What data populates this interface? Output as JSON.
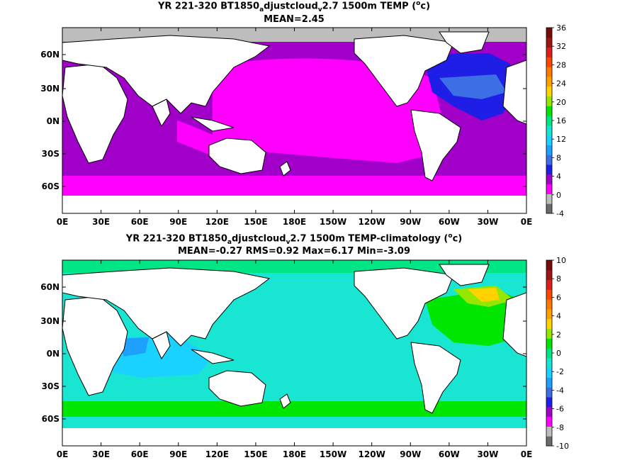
{
  "panels": [
    {
      "title_pre": "YR 221-320 BT1850",
      "title_sub1": "a",
      "title_mid": "djustcloud",
      "title_sub2": "v",
      "title_post": "2.7 1500m TEMP (",
      "title_sup": "o",
      "title_end": "c)",
      "stats": "MEAN=2.45",
      "colorbar_ticks": [
        "-4",
        "0",
        "4",
        "8",
        "12",
        "16",
        "20",
        "24",
        "28",
        "32",
        "36"
      ],
      "colorbar_colors": [
        "#6b6b6b",
        "#bdbdbd",
        "#ff00ff",
        "#a000c8",
        "#1e1ee6",
        "#3c6ee6",
        "#1ea0ff",
        "#19d2ff",
        "#19e6d2",
        "#00e687",
        "#00e600",
        "#96e600",
        "#ffd200",
        "#ffa000",
        "#ff7800",
        "#ff4600",
        "#dc1e1e",
        "#a01414",
        "#780a0a"
      ],
      "fields": {
        "background": "#a000c8",
        "regions": [
          "#ff00ff",
          "#a000c8",
          "#1e1ee6",
          "#3c6ee6",
          "#bdbdbd",
          "#19d2ff"
        ]
      }
    },
    {
      "title_pre": "YR 221-320 BT1850",
      "title_sub1": "a",
      "title_mid": "djustcloud",
      "title_sub2": "v",
      "title_post": "2.7 1500m TEMP-climatology (",
      "title_sup": "o",
      "title_end": "c)",
      "stats": "MEAN=-0.27   RMS=0.92   Max=6.17   Min=-3.09",
      "colorbar_ticks": [
        "-10",
        "-8",
        "-6",
        "-4",
        "-2",
        "0",
        "2",
        "4",
        "6",
        "8",
        "10"
      ],
      "colorbar_colors": [
        "#6b6b6b",
        "#bdbdbd",
        "#ff00ff",
        "#a000c8",
        "#1e1ee6",
        "#3c6ee6",
        "#1ea0ff",
        "#19d2ff",
        "#19e6d2",
        "#00e687",
        "#00e600",
        "#96e600",
        "#ffd200",
        "#ffa000",
        "#ff7800",
        "#ff4600",
        "#dc1e1e",
        "#a01414",
        "#780a0a"
      ]
    }
  ],
  "axes": {
    "x_ticks": [
      "0E",
      "30E",
      "60E",
      "90E",
      "120E",
      "150E",
      "180E",
      "150W",
      "120W",
      "90W",
      "60W",
      "30W",
      "0E"
    ],
    "y_ticks": [
      "60N",
      "30N",
      "0N",
      "30S",
      "60S"
    ]
  }
}
